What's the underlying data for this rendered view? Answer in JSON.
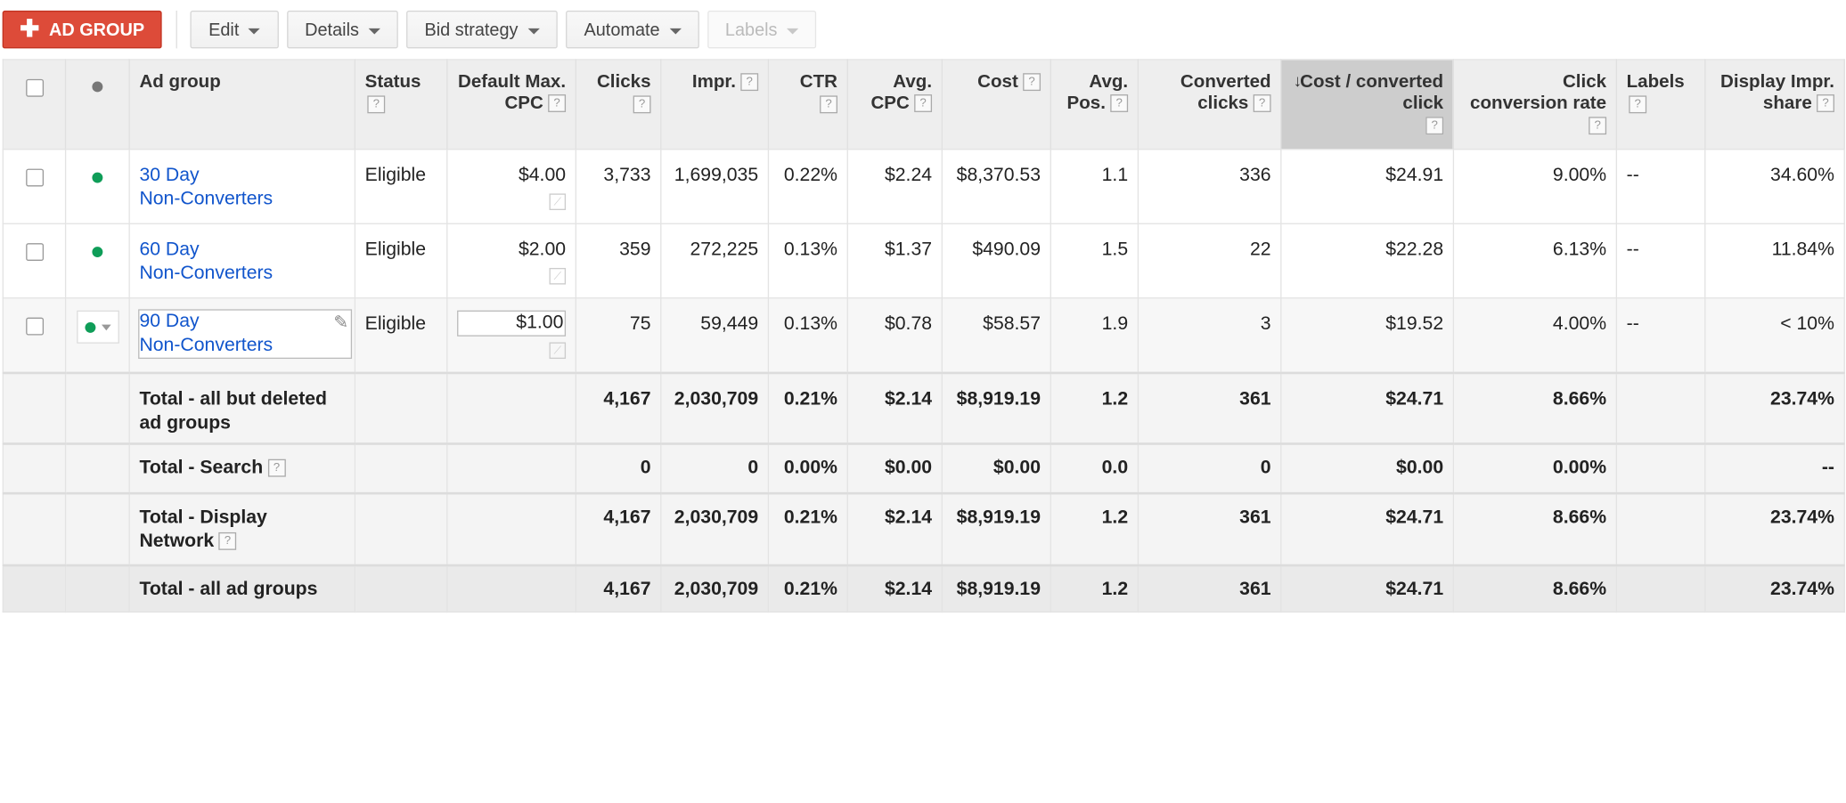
{
  "toolbar": {
    "add_label": "AD GROUP",
    "edit_label": "Edit",
    "details_label": "Details",
    "bid_strategy_label": "Bid strategy",
    "automate_label": "Automate",
    "labels_label": "Labels"
  },
  "columns": {
    "ad_group": "Ad group",
    "status": "Status",
    "default_max_cpc": "Default Max. CPC",
    "clicks": "Clicks",
    "impr": "Impr.",
    "ctr": "CTR",
    "avg_cpc": "Avg. CPC",
    "cost": "Cost",
    "avg_pos": "Avg. Pos.",
    "converted_clicks": "Converted clicks",
    "cost_per_converted_click": "Cost / converted click",
    "click_conversion_rate": "Click conversion rate",
    "labels": "Labels",
    "display_impr_share": "Display Impr. share",
    "help_glyph": "?"
  },
  "rows": [
    {
      "name_line1": "30 Day",
      "name_line2": "Non-Converters",
      "status": "Eligible",
      "max_cpc": "$4.00",
      "clicks": "3,733",
      "impr": "1,699,035",
      "ctr": "0.22%",
      "avg_cpc": "$2.24",
      "cost": "$8,370.53",
      "avg_pos": "1.1",
      "converted_clicks": "336",
      "cost_per_conv": "$24.91",
      "conv_rate": "9.00%",
      "labels": "--",
      "display_share": "34.60%"
    },
    {
      "name_line1": "60 Day",
      "name_line2": "Non-Converters",
      "status": "Eligible",
      "max_cpc": "$2.00",
      "clicks": "359",
      "impr": "272,225",
      "ctr": "0.13%",
      "avg_cpc": "$1.37",
      "cost": "$490.09",
      "avg_pos": "1.5",
      "converted_clicks": "22",
      "cost_per_conv": "$22.28",
      "conv_rate": "6.13%",
      "labels": "--",
      "display_share": "11.84%"
    },
    {
      "name_line1": "90 Day",
      "name_line2": "Non-Converters",
      "status": "Eligible",
      "max_cpc": "$1.00",
      "clicks": "75",
      "impr": "59,449",
      "ctr": "0.13%",
      "avg_cpc": "$0.78",
      "cost": "$58.57",
      "avg_pos": "1.9",
      "converted_clicks": "3",
      "cost_per_conv": "$19.52",
      "conv_rate": "4.00%",
      "labels": "--",
      "display_share": "< 10%"
    }
  ],
  "totals": [
    {
      "label": "Total - all but deleted ad groups",
      "clicks": "4,167",
      "impr": "2,030,709",
      "ctr": "0.21%",
      "avg_cpc": "$2.14",
      "cost": "$8,919.19",
      "avg_pos": "1.2",
      "converted_clicks": "361",
      "cost_per_conv": "$24.71",
      "conv_rate": "8.66%",
      "display_share": "23.74%"
    },
    {
      "label": "Total - Search",
      "clicks": "0",
      "impr": "0",
      "ctr": "0.00%",
      "avg_cpc": "$0.00",
      "cost": "$0.00",
      "avg_pos": "0.0",
      "converted_clicks": "0",
      "cost_per_conv": "$0.00",
      "conv_rate": "0.00%",
      "display_share": "--"
    },
    {
      "label": "Total - Display Network",
      "clicks": "4,167",
      "impr": "2,030,709",
      "ctr": "0.21%",
      "avg_cpc": "$2.14",
      "cost": "$8,919.19",
      "avg_pos": "1.2",
      "converted_clicks": "361",
      "cost_per_conv": "$24.71",
      "conv_rate": "8.66%",
      "display_share": "23.74%"
    },
    {
      "label": "Total - all ad groups",
      "clicks": "4,167",
      "impr": "2,030,709",
      "ctr": "0.21%",
      "avg_cpc": "$2.14",
      "cost": "$8,919.19",
      "avg_pos": "1.2",
      "converted_clicks": "361",
      "cost_per_conv": "$24.71",
      "conv_rate": "8.66%",
      "display_share": "23.74%"
    }
  ],
  "colors": {
    "accent": "#dd4b39",
    "link": "#1155cc",
    "eligible_dot": "#0f9d58",
    "sorted_header": "#cdcdcd"
  },
  "icons": [
    "plus-icon",
    "caret-down-icon",
    "sort-down-arrow-icon",
    "help-icon",
    "status-dot-icon",
    "pencil-icon",
    "trend-chart-icon",
    "checkbox"
  ]
}
